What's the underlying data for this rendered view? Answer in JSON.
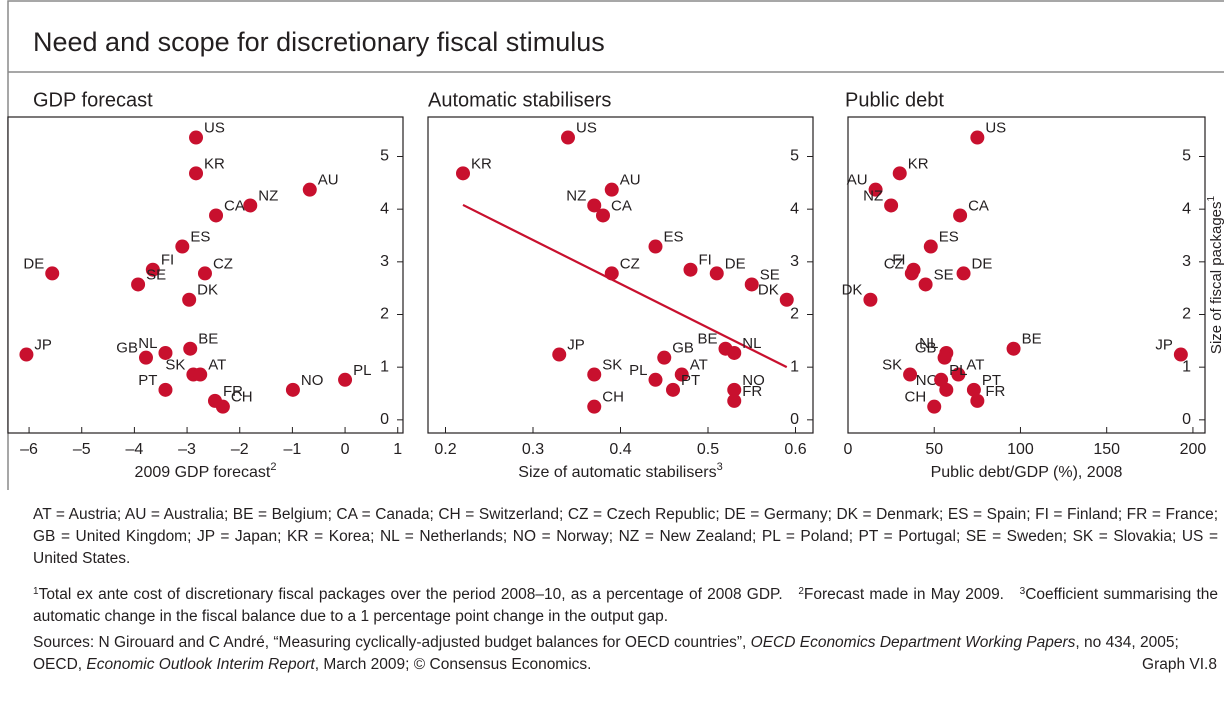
{
  "title": "Need and scope for discretionary fiscal stimulus",
  "chart_data": [
    {
      "type": "scatter",
      "title": "GDP forecast",
      "xlabel": "2009 GDP forecast",
      "xlabel_note": "2",
      "labels": [
        "US",
        "KR",
        "AU",
        "NZ",
        "CA",
        "ES",
        "DE",
        "FI",
        "CZ",
        "SE",
        "DK",
        "JP",
        "NL",
        "BE",
        "GB",
        "SK",
        "AT",
        "PT",
        "NO",
        "PL",
        "FR",
        "CH"
      ],
      "x": [
        -2.83,
        -2.83,
        -0.67,
        -1.8,
        -2.45,
        -3.09,
        -5.56,
        -3.65,
        -2.66,
        -3.93,
        -2.96,
        -6.05,
        -3.41,
        -2.94,
        -3.78,
        -2.88,
        -2.75,
        -3.41,
        -0.99,
        0.0,
        -2.47,
        -2.32
      ],
      "values": [
        5.36,
        4.68,
        4.37,
        4.07,
        3.88,
        3.29,
        2.78,
        2.85,
        2.78,
        2.57,
        2.28,
        1.24,
        1.27,
        1.35,
        1.18,
        0.86,
        0.86,
        0.57,
        0.57,
        0.76,
        0.36,
        0.25
      ],
      "color": "#c8102e",
      "xlim": [
        -6.4,
        1.1
      ],
      "xticks": [
        {
          "value": -6,
          "label": "–6"
        },
        {
          "value": -5,
          "label": "–5"
        },
        {
          "value": -4,
          "label": "–4"
        },
        {
          "value": -3,
          "label": "–3"
        },
        {
          "value": -2,
          "label": "–2"
        },
        {
          "value": -1,
          "label": "–1"
        },
        0,
        1
      ],
      "ylim": [
        -0.25,
        5.75
      ],
      "yticks": [
        0,
        1,
        2,
        3,
        4,
        5
      ],
      "grid": false
    },
    {
      "type": "scatter",
      "title": "Automatic stabilisers",
      "xlabel": "Size of automatic stabilisers",
      "xlabel_note": "3",
      "labels": [
        "US",
        "KR",
        "AU",
        "NZ",
        "CA",
        "ES",
        "DE",
        "FI",
        "CZ",
        "SE",
        "DK",
        "JP",
        "NL",
        "BE",
        "GB",
        "SK",
        "AT",
        "PT",
        "NO",
        "PL",
        "FR",
        "CH"
      ],
      "x": [
        0.34,
        0.22,
        0.39,
        0.37,
        0.38,
        0.44,
        0.51,
        0.48,
        0.39,
        0.55,
        0.59,
        0.33,
        0.53,
        0.52,
        0.45,
        0.37,
        0.47,
        0.46,
        0.53,
        0.44,
        0.53,
        0.37
      ],
      "values": [
        5.36,
        4.68,
        4.37,
        4.07,
        3.88,
        3.29,
        2.78,
        2.85,
        2.78,
        2.57,
        2.28,
        1.24,
        1.27,
        1.35,
        1.18,
        0.86,
        0.86,
        0.57,
        0.57,
        0.76,
        0.36,
        0.25
      ],
      "color": "#c8102e",
      "fit": {
        "x": [
          0.22,
          0.59
        ],
        "y": [
          4.08,
          1.0
        ],
        "color": "#c8102e"
      },
      "xlim": [
        0.18,
        0.62
      ],
      "xticks": [
        0.2,
        0.3,
        0.4,
        0.5,
        0.6
      ],
      "ylim": [
        -0.25,
        5.75
      ],
      "yticks": [
        0,
        1,
        2,
        3,
        4,
        5
      ],
      "grid": false
    },
    {
      "type": "scatter",
      "title": "Public debt",
      "xlabel": "Public debt/GDP (%), 2008",
      "ylabel": "Size of fiscal packages",
      "ylabel_note": "1",
      "labels": [
        "US",
        "KR",
        "AU",
        "NZ",
        "CA",
        "ES",
        "DE",
        "FI",
        "CZ",
        "SE",
        "DK",
        "JP",
        "NL",
        "BE",
        "GB",
        "SK",
        "AT",
        "PT",
        "NO",
        "PL",
        "FR",
        "CH"
      ],
      "x": [
        75,
        30,
        16,
        25,
        65,
        48,
        67,
        38,
        37,
        45,
        13,
        193,
        57,
        96,
        56,
        36,
        64,
        73,
        57,
        54,
        75,
        50
      ],
      "values": [
        5.36,
        4.68,
        4.37,
        4.07,
        3.88,
        3.29,
        2.78,
        2.85,
        2.78,
        2.57,
        2.28,
        1.24,
        1.27,
        1.35,
        1.18,
        0.86,
        0.86,
        0.57,
        0.57,
        0.76,
        0.36,
        0.25
      ],
      "color": "#c8102e",
      "xlim": [
        0,
        207
      ],
      "xticks": [
        0,
        50,
        100,
        150,
        200
      ],
      "ylim": [
        -0.25,
        5.75
      ],
      "yticks": [
        0,
        1,
        2,
        3,
        4,
        5
      ],
      "grid": false
    }
  ],
  "abbreviations": "AT = Austria; AU = Australia; BE = Belgium; CA = Canada; CH = Switzerland; CZ = Czech Republic; DE = Germany; DK = Denmark; ES = Spain; FI = Finland; FR = France; GB = United Kingdom; JP = Japan; KR = Korea; NL = Netherlands; NO = Norway; NZ = New Zealand; PL = Poland; PT = Portugal; SE = Sweden; SK = Slovakia; US = United States.",
  "footnotes": [
    {
      "mark": "1",
      "text": "Total ex ante cost of discretionary fiscal packages over the period 2008–10, as a percentage of 2008 GDP."
    },
    {
      "mark": "2",
      "text": "Forecast made in May 2009."
    },
    {
      "mark": "3",
      "text": "Coefficient summarising the automatic change in the fiscal balance due to a 1 percentage point change in the output gap."
    }
  ],
  "sources": [
    "Sources: N Girouard and C André, “Measuring cyclically-adjusted budget balances for OECD countries”, ",
    "OECD Economics Department Working Papers",
    ", no 434, 2005; OECD, ",
    "Economic Outlook Interim Report",
    ", March 2009; © Consensus Economics."
  ],
  "graph_id": "Graph VI.8"
}
